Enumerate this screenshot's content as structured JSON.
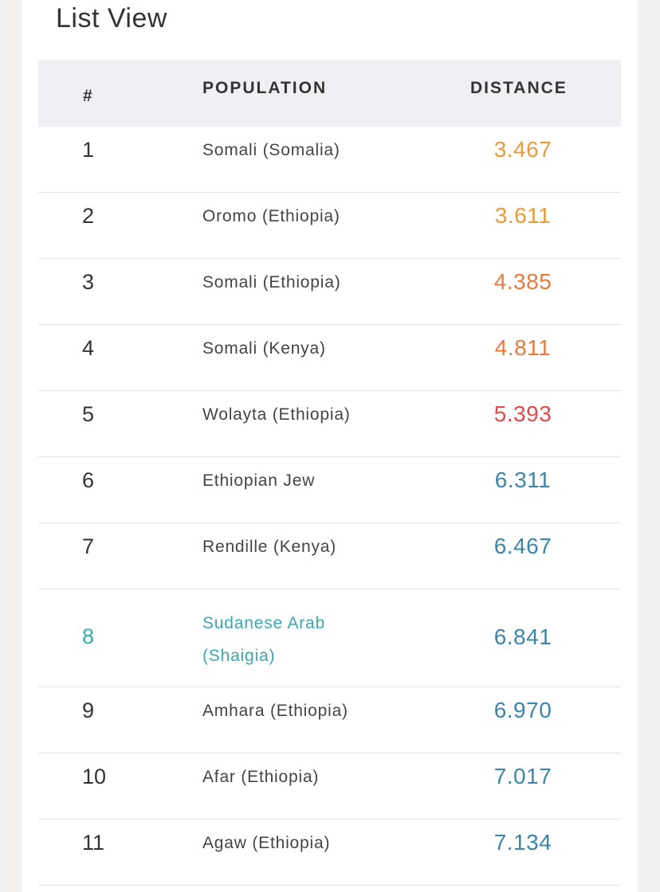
{
  "title": "List View",
  "headers": {
    "num": "#",
    "population": "POPULATION",
    "distance": "DISTANCE"
  },
  "colors": {
    "tier_orange_light": "#eb9a3a",
    "tier_orange_dark": "#e67a3c",
    "tier_red": "#e04a4a",
    "tier_blue": "#3a86a8",
    "highlight_teal": "#3aa8b0"
  },
  "rows": [
    {
      "num": "1",
      "population": "Somali (Somalia)",
      "distance": "3.467",
      "color": "#eb9a3a"
    },
    {
      "num": "2",
      "population": "Oromo (Ethiopia)",
      "distance": "3.611",
      "color": "#eb9a3a"
    },
    {
      "num": "3",
      "population": "Somali (Ethiopia)",
      "distance": "4.385",
      "color": "#e67a3c"
    },
    {
      "num": "4",
      "population": "Somali (Kenya)",
      "distance": "4.811",
      "color": "#e67a3c"
    },
    {
      "num": "5",
      "population": "Wolayta (Ethiopia)",
      "distance": "5.393",
      "color": "#e04a4a"
    },
    {
      "num": "6",
      "population": "Ethiopian Jew",
      "distance": "6.311",
      "color": "#3a86a8"
    },
    {
      "num": "7",
      "population": "Rendille (Kenya)",
      "distance": "6.467",
      "color": "#3a86a8"
    },
    {
      "num": "8",
      "population": "Sudanese Arab (Shaigia)",
      "distance": "6.841",
      "color": "#3a86a8",
      "highlighted": true
    },
    {
      "num": "9",
      "population": "Amhara (Ethiopia)",
      "distance": "6.970",
      "color": "#3a86a8"
    },
    {
      "num": "10",
      "population": "Afar (Ethiopia)",
      "distance": "7.017",
      "color": "#3a86a8"
    },
    {
      "num": "11",
      "population": "Agaw (Ethiopia)",
      "distance": "7.134",
      "color": "#3a86a8"
    }
  ]
}
